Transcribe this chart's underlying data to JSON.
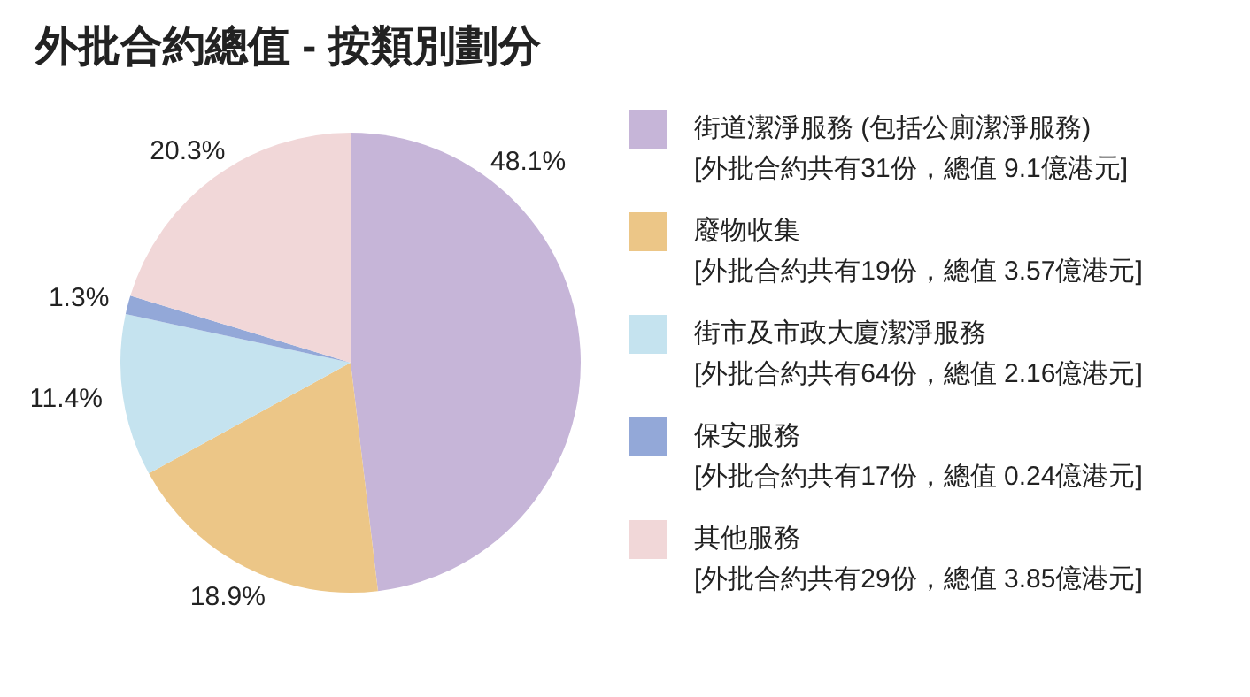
{
  "chart_data": {
    "type": "pie",
    "title": "外批合約總值 - 按類別劃分",
    "categories": [
      "街道潔淨服務 (包括公廁潔淨服務)",
      "廢物收集",
      "街市及市政大廈潔淨服務",
      "保安服務",
      "其他服務"
    ],
    "values": [
      48.1,
      18.9,
      11.4,
      1.3,
      20.3
    ],
    "colors": [
      "#c6b5d8",
      "#ecc687",
      "#c5e3ef",
      "#93a8d8",
      "#f1d7d8"
    ],
    "value_labels": [
      "48.1%",
      "18.9%",
      "11.4%",
      "1.3%",
      "20.3%"
    ],
    "annotations": [
      "[外批合約共有31份，總值 9.1億港元]",
      "[外批合約共有19份，總值 3.57億港元]",
      "[外批合約共有64份，總值 2.16億港元]",
      "[外批合約共有17份，總值 0.24億港元]",
      "[外批合約共有29份，總值 3.85億港元]"
    ],
    "legend": "right"
  }
}
